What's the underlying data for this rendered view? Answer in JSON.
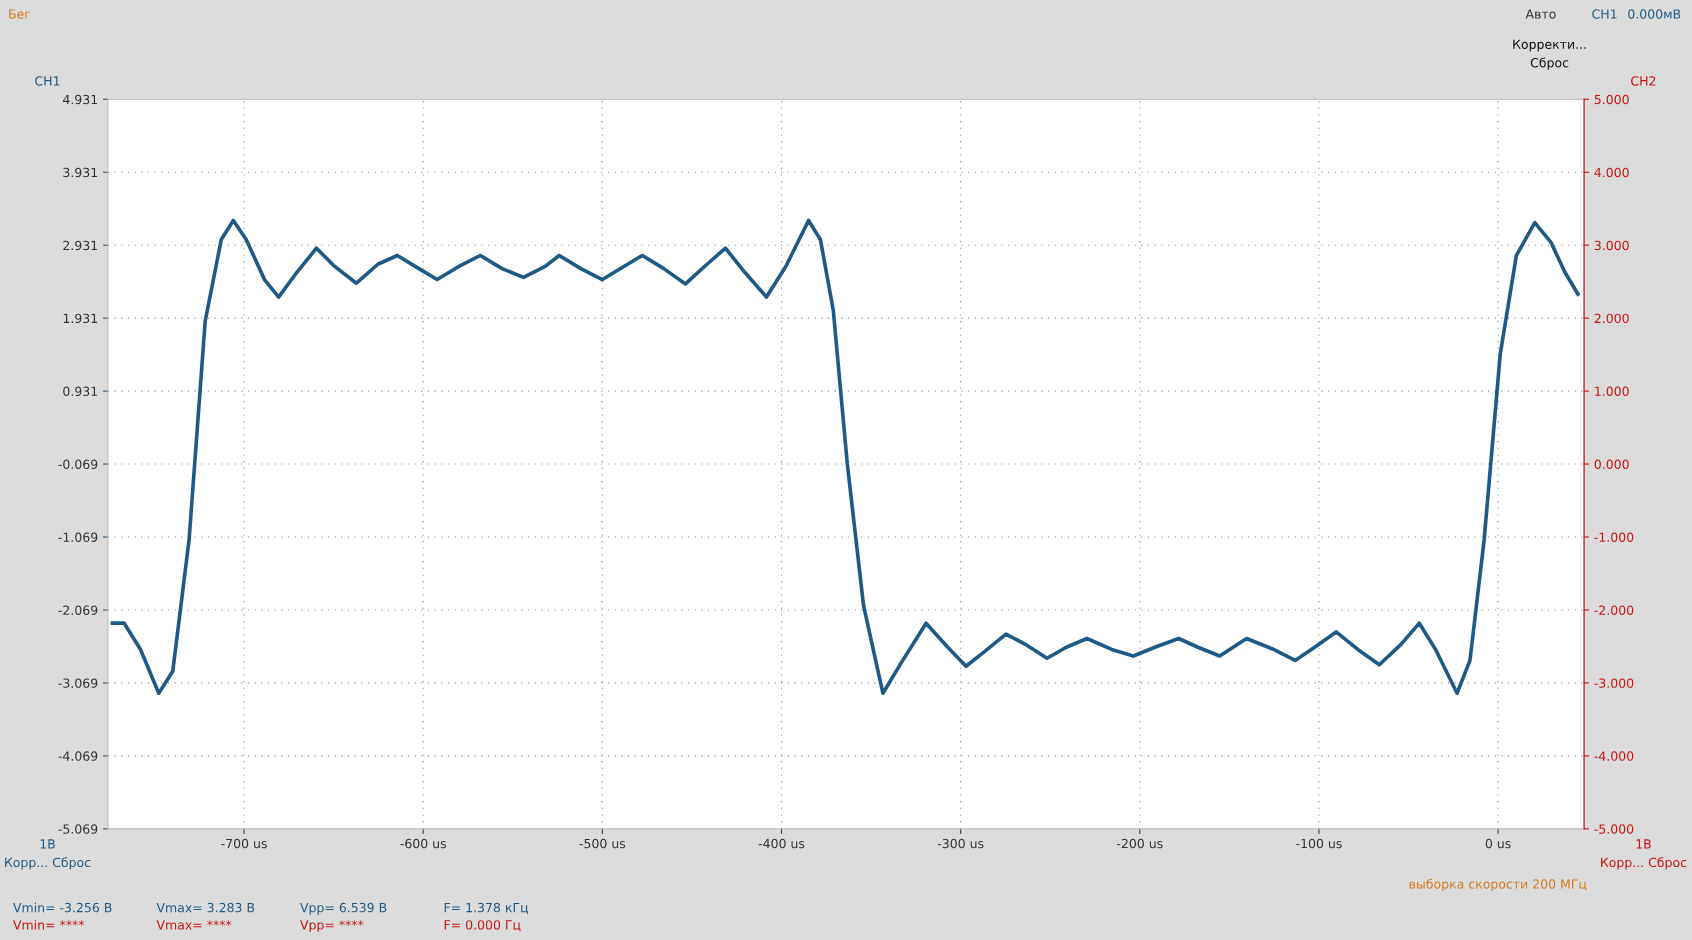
{
  "chart_data": {
    "type": "line",
    "x": [
      -773.5,
      -766.9,
      -757.8,
      -747.6,
      -739.8,
      -730.7,
      -721.7,
      -712.7,
      -706.0,
      -698.8,
      -688.6,
      -680.7,
      -670.5,
      -659.6,
      -649.4,
      -637.3,
      -625.3,
      -614.5,
      -602.4,
      -592.2,
      -580.1,
      -568.1,
      -556.0,
      -544.0,
      -531.9,
      -524.1,
      -512.0,
      -500.0,
      -488.0,
      -477.7,
      -465.7,
      -453.6,
      -441.6,
      -431.3,
      -420.5,
      -408.4,
      -397.6,
      -384.9,
      -378.3,
      -371.1,
      -363.3,
      -354.2,
      -343.4,
      -333.1,
      -319.3,
      -307.2,
      -297.0,
      -286.7,
      -274.7,
      -263.9,
      -251.8,
      -241.0,
      -229.5,
      -215.7,
      -203.6,
      -191.6,
      -178.3,
      -167.5,
      -155.4,
      -140.4,
      -125.3,
      -113.3,
      -102.4,
      -90.4,
      -78.3,
      -66.3,
      -54.2,
      -44.0,
      -34.9,
      -22.9,
      -15.7,
      -7.8,
      1.2,
      10.2,
      20.5,
      29.5,
      37.3,
      44.6
    ],
    "series": [
      {
        "color": "#1f5a85",
        "values": [
          -2.25,
          -2.25,
          -2.61,
          -3.21,
          -2.91,
          -1.11,
          1.89,
          3.01,
          3.27,
          3.01,
          2.46,
          2.22,
          2.56,
          2.89,
          2.64,
          2.41,
          2.67,
          2.79,
          2.61,
          2.46,
          2.64,
          2.79,
          2.61,
          2.49,
          2.64,
          2.79,
          2.61,
          2.46,
          2.64,
          2.79,
          2.61,
          2.4,
          2.67,
          2.89,
          2.56,
          2.22,
          2.64,
          3.27,
          3.01,
          2.04,
          -0.06,
          -2.01,
          -3.21,
          -2.79,
          -2.25,
          -2.58,
          -2.84,
          -2.64,
          -2.4,
          -2.54,
          -2.73,
          -2.58,
          -2.46,
          -2.61,
          -2.7,
          -2.58,
          -2.46,
          -2.58,
          -2.7,
          -2.46,
          -2.61,
          -2.76,
          -2.58,
          -2.37,
          -2.61,
          -2.82,
          -2.54,
          -2.25,
          -2.61,
          -3.21,
          -2.76,
          -1.11,
          1.44,
          2.79,
          3.24,
          2.97,
          2.56,
          2.26
        ]
      }
    ],
    "xlim": [
      -776,
      48
    ],
    "xticks": [
      {
        "value": -700,
        "label": "-700 us"
      },
      {
        "value": -600,
        "label": "-600 us"
      },
      {
        "value": -500,
        "label": "-500 us"
      },
      {
        "value": -400,
        "label": "-400 us"
      },
      {
        "value": -300,
        "label": "-300 us"
      },
      {
        "value": -200,
        "label": "-200 us"
      },
      {
        "value": -100,
        "label": "-100 us"
      },
      {
        "value": 0,
        "label": "0 us"
      }
    ],
    "ylim": [
      -5.069,
      4.931
    ],
    "yticks": [
      {
        "value": -5.069,
        "label": "-5.069"
      },
      {
        "value": -4.069,
        "label": "-4.069"
      },
      {
        "value": -3.069,
        "label": "-3.069"
      },
      {
        "value": -2.069,
        "label": "-2.069"
      },
      {
        "value": -1.069,
        "label": "-1.069"
      },
      {
        "value": -0.069,
        "label": "-0.069"
      },
      {
        "value": 0.931,
        "label": "0.931"
      },
      {
        "value": 1.931,
        "label": "1.931"
      },
      {
        "value": 2.931,
        "label": "2.931"
      },
      {
        "value": 3.931,
        "label": "3.931"
      },
      {
        "value": 4.931,
        "label": "4.931"
      }
    ],
    "y2lim": [
      -5,
      5
    ],
    "y2ticks": [
      {
        "value": -5,
        "label": "-5.000"
      },
      {
        "value": -4,
        "label": "-4.000"
      },
      {
        "value": -3,
        "label": "-3.000"
      },
      {
        "value": -2,
        "label": "-2.000"
      },
      {
        "value": -1,
        "label": "-1.000"
      },
      {
        "value": 0,
        "label": "0.000"
      },
      {
        "value": 1,
        "label": "1.000"
      },
      {
        "value": 2,
        "label": "2.000"
      },
      {
        "value": 3,
        "label": "3.000"
      },
      {
        "value": 4,
        "label": "4.000"
      },
      {
        "value": 5,
        "label": "5.000"
      }
    ],
    "grid": true,
    "marker": "none",
    "line_style": "solid",
    "annotations": [
      "Бег",
      "Авто",
      "CH1",
      "0.000мВ",
      "Корректи...",
      "Сброс",
      "CH1",
      "CH2",
      "1В",
      "Корр... Сброс",
      "1В",
      "Корр... Сброс",
      "выборка скорости 200 МГц",
      "Vmin= -3.256 В",
      "Vmax= 3.283 В",
      "Vpp= 6.539 В",
      "F= 1.378 кГц",
      "Vmin= ****",
      "Vmax= ****",
      "Vpp= ****",
      "F= 0.000 Гц"
    ]
  }
}
